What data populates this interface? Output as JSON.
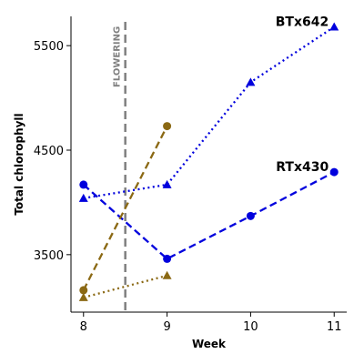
{
  "chart_data": {
    "type": "line",
    "xlabel": "Week",
    "ylabel": "Total chlorophyll",
    "xlim": [
      7.85,
      11.15
    ],
    "ylim": [
      2950,
      5780
    ],
    "xticks": [
      8,
      9,
      10,
      11
    ],
    "yticks": [
      3500,
      4500,
      5500
    ],
    "grid": false,
    "annotation": {
      "text": "FLOWERING",
      "x": 8.5,
      "color": "#808080"
    },
    "series": [
      {
        "name": "BTx642",
        "genotype": "BTx642",
        "marker": "triangle",
        "line": "dotted",
        "color": "#0000dd",
        "x": [
          8,
          9,
          10,
          11
        ],
        "y": [
          4040,
          4170,
          5150,
          5680
        ]
      },
      {
        "name": "RTx430",
        "genotype": "RTx430",
        "marker": "circle",
        "line": "dashed",
        "color": "#0000dd",
        "x": [
          8,
          9,
          10,
          11
        ],
        "y": [
          4170,
          3460,
          3870,
          4290
        ]
      },
      {
        "genotype": "",
        "marker": "circle",
        "line": "dashed",
        "color": "#8b6914",
        "x": [
          8,
          9
        ],
        "y": [
          3160,
          4730
        ]
      },
      {
        "genotype": "",
        "marker": "triangle",
        "line": "dotted",
        "color": "#8b6914",
        "x": [
          8,
          9
        ],
        "y": [
          3090,
          3300
        ]
      }
    ],
    "labels": [
      {
        "text": "BTx642",
        "series": 0
      },
      {
        "text": "RTx430",
        "series": 1
      }
    ]
  }
}
